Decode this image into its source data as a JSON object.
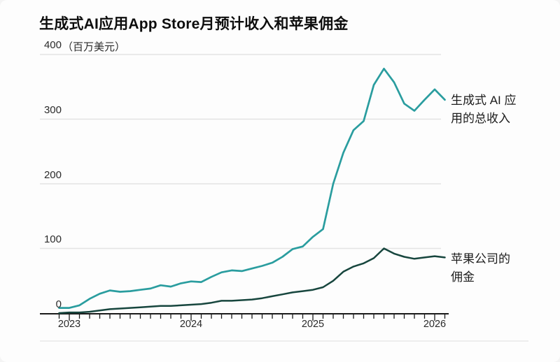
{
  "title": "生成式AI应用App Store月预计收入和苹果佣金",
  "y_axis": {
    "unit_label": "（百万美元）",
    "tick_labels": [
      "400",
      "300",
      "200",
      "100",
      "0"
    ]
  },
  "x_axis": {
    "year_labels": [
      "2023",
      "2024",
      "2025",
      "2026"
    ]
  },
  "annotations": {
    "revenue_label_line1": "生成式 AI 应",
    "revenue_label_line2": "用的总收入",
    "commission_label_line1": "苹果公司的",
    "commission_label_line2": "佣金"
  },
  "colors": {
    "revenue_line": "#2a9d9f",
    "commission_line": "#17463e",
    "grid": "#e4e4e4",
    "axis": "#1a1a1a"
  },
  "chart_data": {
    "type": "line",
    "title": "生成式AI应用App Store月预计收入和苹果佣金",
    "xlabel": "",
    "ylabel": "百万美元",
    "ylim": [
      0,
      400
    ],
    "y_ticks": [
      0,
      100,
      200,
      300,
      400
    ],
    "grid": true,
    "legend_position": "right",
    "x": [
      "2022-12",
      "2023-01",
      "2023-02",
      "2023-03",
      "2023-04",
      "2023-05",
      "2023-06",
      "2023-07",
      "2023-08",
      "2023-09",
      "2023-10",
      "2023-11",
      "2023-12",
      "2024-01",
      "2024-02",
      "2024-03",
      "2024-04",
      "2024-05",
      "2024-06",
      "2024-07",
      "2024-08",
      "2024-09",
      "2024-10",
      "2024-11",
      "2024-12",
      "2025-01",
      "2025-02",
      "2025-03",
      "2025-04",
      "2025-05",
      "2025-06",
      "2025-07",
      "2025-08",
      "2025-09",
      "2025-10",
      "2025-11",
      "2025-12",
      "2026-01",
      "2026-02"
    ],
    "x_tick_labels": [
      "2023",
      "2024",
      "2025",
      "2026"
    ],
    "series": [
      {
        "name": "生成式 AI 应用的总收入",
        "color": "#2a9d9f",
        "values": [
          8,
          8,
          12,
          22,
          30,
          35,
          33,
          34,
          36,
          38,
          43,
          41,
          46,
          49,
          48,
          56,
          63,
          66,
          65,
          69,
          73,
          78,
          87,
          99,
          103,
          118,
          130,
          200,
          248,
          283,
          297,
          353,
          378,
          357,
          324,
          313,
          330,
          346,
          330
        ]
      },
      {
        "name": "苹果公司的佣金",
        "color": "#17463e",
        "values": [
          0,
          1,
          1,
          2,
          4,
          6,
          7,
          8,
          9,
          10,
          11,
          11,
          12,
          13,
          14,
          16,
          19,
          19,
          20,
          21,
          23,
          26,
          29,
          32,
          34,
          36,
          40,
          50,
          64,
          72,
          77,
          85,
          100,
          92,
          87,
          84,
          86,
          88,
          86
        ]
      }
    ]
  }
}
